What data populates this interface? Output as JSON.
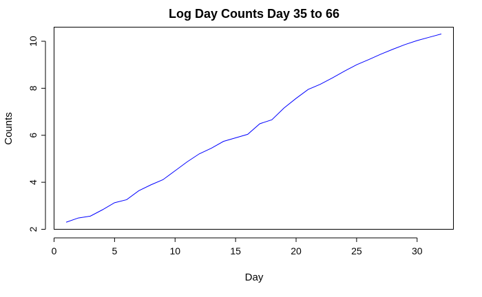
{
  "chart_data": {
    "type": "line",
    "title": "Log Day Counts Day 35 to 66",
    "xlabel": "Day",
    "ylabel": "Counts",
    "xlim": [
      0,
      33
    ],
    "ylim": [
      2,
      10.6
    ],
    "xticks": [
      0,
      5,
      10,
      15,
      20,
      25,
      30
    ],
    "yticks": [
      2,
      4,
      6,
      8,
      10
    ],
    "grid": false,
    "legend": "none",
    "series": [
      {
        "color": "#0000ff",
        "x": [
          1,
          2,
          3,
          4,
          5,
          6,
          7,
          8,
          9,
          10,
          11,
          12,
          13,
          14,
          15,
          16,
          17,
          18,
          19,
          20,
          21,
          22,
          23,
          24,
          25,
          26,
          27,
          28,
          29,
          30,
          31,
          32
        ],
        "y": [
          2.3,
          2.48,
          2.56,
          2.83,
          3.13,
          3.26,
          3.64,
          3.89,
          4.11,
          4.49,
          4.87,
          5.21,
          5.45,
          5.74,
          5.89,
          6.04,
          6.49,
          6.66,
          7.16,
          7.57,
          7.95,
          8.17,
          8.44,
          8.73,
          9.0,
          9.22,
          9.45,
          9.66,
          9.86,
          10.03,
          10.17,
          10.31
        ]
      }
    ]
  }
}
